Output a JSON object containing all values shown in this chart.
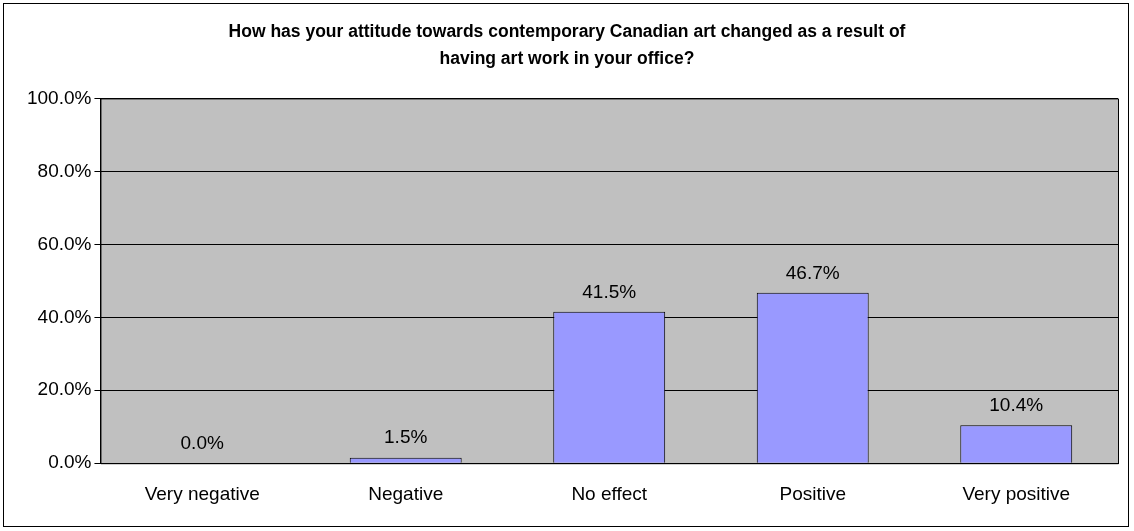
{
  "chart_data": {
    "type": "bar",
    "title": "How has your attitude towards contemporary Canadian art changed as a result of having art work in your office?",
    "categories": [
      "Very negative",
      "Negative",
      "No effect",
      "Positive",
      "Very positive"
    ],
    "values": [
      0.0,
      1.5,
      41.5,
      46.7,
      10.4
    ],
    "value_labels": [
      "0.0%",
      "1.5%",
      "41.5%",
      "46.7%",
      "10.4%"
    ],
    "color": "#9999ff",
    "ylim": [
      0,
      100
    ],
    "yticks": [
      {
        "value": 0,
        "label": "0.0%"
      },
      {
        "value": 20,
        "label": "20.0%"
      },
      {
        "value": 40,
        "label": "40.0%"
      },
      {
        "value": 60,
        "label": "60.0%"
      },
      {
        "value": 80,
        "label": "80.0%"
      },
      {
        "value": 100,
        "label": "100.0%"
      }
    ],
    "grid": "y",
    "legend": false
  }
}
